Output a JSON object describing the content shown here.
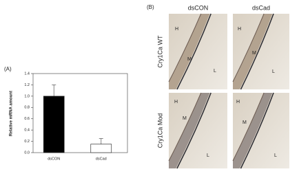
{
  "panel_a": {
    "label": "(A)",
    "chart_data": {
      "type": "bar",
      "y_label": "Relative mRNA amount",
      "categories": [
        "dsCON",
        "dsCad"
      ],
      "values": [
        1.0,
        0.15
      ],
      "errors": [
        0.2,
        0.1
      ],
      "colors": [
        "#000000",
        "#ffffff"
      ],
      "ylim": [
        0,
        1.4
      ],
      "yticks": [
        {
          "value": 0,
          "label": "0.0"
        },
        {
          "value": 0.2,
          "label": "0.2"
        },
        {
          "value": 0.4,
          "label": "0.4"
        },
        {
          "value": 0.6,
          "label": "0.6"
        },
        {
          "value": 0.8,
          "label": "0.8"
        },
        {
          "value": 1.0,
          "label": "1.0"
        },
        {
          "value": 1.2,
          "label": "1.2"
        },
        {
          "value": 1.4,
          "label": "1.4"
        }
      ]
    }
  },
  "panel_b": {
    "label": "(B)",
    "columns": [
      "dsCON",
      "dsCad"
    ],
    "rows": [
      "Cry1Ca WT",
      "Cry1Ca Mod"
    ],
    "images": [
      [
        [
          "H",
          "M",
          "L"
        ],
        [
          "H",
          "M",
          "L"
        ]
      ],
      [
        [
          "H",
          "M",
          "L"
        ],
        [
          "H",
          "M",
          "L"
        ]
      ]
    ]
  }
}
